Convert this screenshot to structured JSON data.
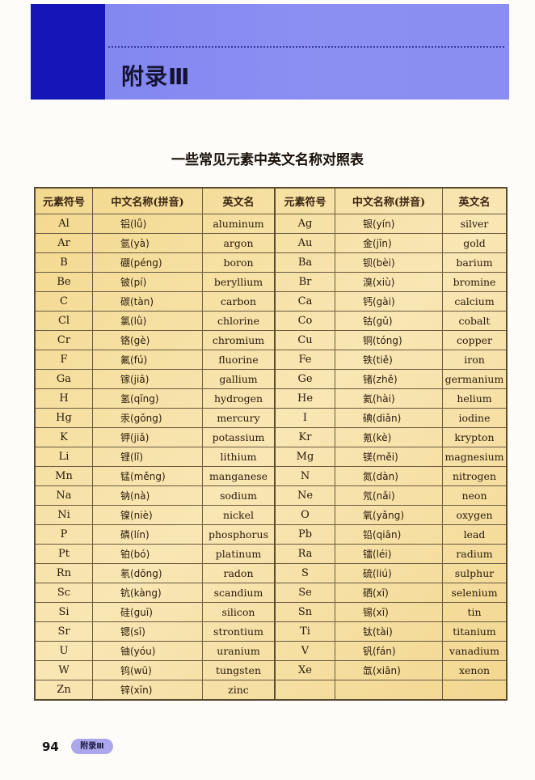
{
  "banner": {
    "title": "附录Ⅲ",
    "colors": {
      "strip": "#1515b8",
      "band": "#8a8ef0"
    }
  },
  "table_title": "一些常见元素中英文名称对照表",
  "headers": [
    "元素符号",
    "中文名称(拼音)",
    "英文名",
    "元素符号",
    "中文名称(拼音)",
    "英文名"
  ],
  "rows": [
    [
      {
        "sym": "Al",
        "cn": "铝(lǚ)",
        "en": "aluminum"
      },
      {
        "sym": "Ag",
        "cn": "银(yín)",
        "en": "silver"
      }
    ],
    [
      {
        "sym": "Ar",
        "cn": "氩(yà)",
        "en": "argon"
      },
      {
        "sym": "Au",
        "cn": "金(jīn)",
        "en": "gold"
      }
    ],
    [
      {
        "sym": "B",
        "cn": "硼(péng)",
        "en": "boron"
      },
      {
        "sym": "Ba",
        "cn": "钡(bèi)",
        "en": "barium"
      }
    ],
    [
      {
        "sym": "Be",
        "cn": "铍(pí)",
        "en": "beryllium"
      },
      {
        "sym": "Br",
        "cn": "溴(xiù)",
        "en": "bromine"
      }
    ],
    [
      {
        "sym": "C",
        "cn": "碳(tàn)",
        "en": "carbon"
      },
      {
        "sym": "Ca",
        "cn": "钙(gài)",
        "en": "calcium"
      }
    ],
    [
      {
        "sym": "Cl",
        "cn": "氯(lǜ)",
        "en": "chlorine"
      },
      {
        "sym": "Co",
        "cn": "钴(gǔ)",
        "en": "cobalt"
      }
    ],
    [
      {
        "sym": "Cr",
        "cn": "铬(gè)",
        "en": "chromium"
      },
      {
        "sym": "Cu",
        "cn": "铜(tóng)",
        "en": "copper"
      }
    ],
    [
      {
        "sym": "F",
        "cn": "氟(fú)",
        "en": "fluorine"
      },
      {
        "sym": "Fe",
        "cn": "铁(tiě)",
        "en": "iron"
      }
    ],
    [
      {
        "sym": "Ga",
        "cn": "镓(jiā)",
        "en": "gallium"
      },
      {
        "sym": "Ge",
        "cn": "锗(zhě)",
        "en": "germanium"
      }
    ],
    [
      {
        "sym": "H",
        "cn": "氢(qīng)",
        "en": "hydrogen"
      },
      {
        "sym": "He",
        "cn": "氦(hài)",
        "en": "helium"
      }
    ],
    [
      {
        "sym": "Hg",
        "cn": "汞(gǒng)",
        "en": "mercury"
      },
      {
        "sym": "I",
        "cn": "碘(diǎn)",
        "en": "iodine"
      }
    ],
    [
      {
        "sym": "K",
        "cn": "钾(jiǎ)",
        "en": "potassium"
      },
      {
        "sym": "Kr",
        "cn": "氪(kè)",
        "en": "krypton"
      }
    ],
    [
      {
        "sym": "Li",
        "cn": "锂(lǐ)",
        "en": "lithium"
      },
      {
        "sym": "Mg",
        "cn": "镁(měi)",
        "en": "magnesium"
      }
    ],
    [
      {
        "sym": "Mn",
        "cn": "锰(měng)",
        "en": "manganese"
      },
      {
        "sym": "N",
        "cn": "氮(dàn)",
        "en": "nitrogen"
      }
    ],
    [
      {
        "sym": "Na",
        "cn": "钠(nà)",
        "en": "sodium"
      },
      {
        "sym": "Ne",
        "cn": "氖(nǎi)",
        "en": "neon"
      }
    ],
    [
      {
        "sym": "Ni",
        "cn": "镍(niè)",
        "en": "nickel"
      },
      {
        "sym": "O",
        "cn": "氧(yǎng)",
        "en": "oxygen"
      }
    ],
    [
      {
        "sym": "P",
        "cn": "磷(lín)",
        "en": "phosphorus"
      },
      {
        "sym": "Pb",
        "cn": "铅(qiān)",
        "en": "lead"
      }
    ],
    [
      {
        "sym": "Pt",
        "cn": "铂(bó)",
        "en": "platinum"
      },
      {
        "sym": "Ra",
        "cn": "镭(léi)",
        "en": "radium"
      }
    ],
    [
      {
        "sym": "Rn",
        "cn": "氡(dōng)",
        "en": "radon"
      },
      {
        "sym": "S",
        "cn": "硫(liú)",
        "en": "sulphur"
      }
    ],
    [
      {
        "sym": "Sc",
        "cn": "钪(kàng)",
        "en": "scandium"
      },
      {
        "sym": "Se",
        "cn": "硒(xī)",
        "en": "selenium"
      }
    ],
    [
      {
        "sym": "Si",
        "cn": "硅(guī)",
        "en": "silicon"
      },
      {
        "sym": "Sn",
        "cn": "锡(xī)",
        "en": "tin"
      }
    ],
    [
      {
        "sym": "Sr",
        "cn": "锶(sī)",
        "en": "strontium"
      },
      {
        "sym": "Ti",
        "cn": "钛(tài)",
        "en": "titanium"
      }
    ],
    [
      {
        "sym": "U",
        "cn": "铀(yóu)",
        "en": "uranium"
      },
      {
        "sym": "V",
        "cn": "钒(fán)",
        "en": "vanadium"
      }
    ],
    [
      {
        "sym": "W",
        "cn": "钨(wū)",
        "en": "tungsten"
      },
      {
        "sym": "Xe",
        "cn": "氙(xiān)",
        "en": "xenon"
      }
    ],
    [
      {
        "sym": "Zn",
        "cn": "锌(xīn)",
        "en": "zinc"
      },
      {
        "sym": "",
        "cn": "",
        "en": ""
      }
    ]
  ],
  "footer": {
    "page_number": "94",
    "section_label": "附录Ⅲ"
  }
}
